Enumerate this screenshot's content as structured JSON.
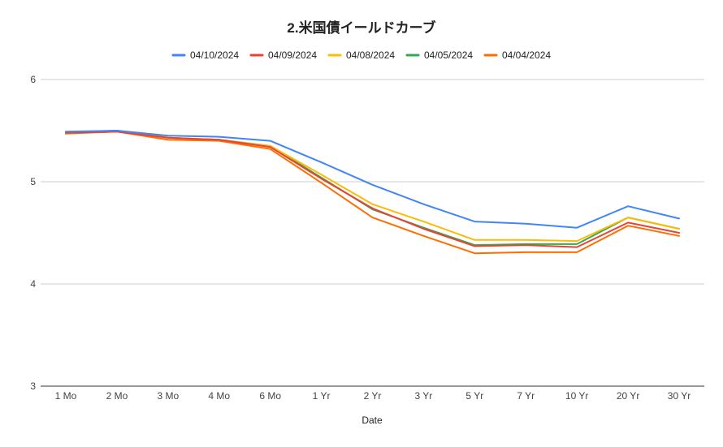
{
  "chart_data": {
    "type": "line",
    "title": "2.米国債イールドカーブ",
    "xlabel": "Date",
    "ylabel": "",
    "categories": [
      "1 Mo",
      "2 Mo",
      "3 Mo",
      "4 Mo",
      "6 Mo",
      "1 Yr",
      "2 Yr",
      "3 Yr",
      "5 Yr",
      "7 Yr",
      "10 Yr",
      "20 Yr",
      "30 Yr"
    ],
    "ylim": [
      3,
      6
    ],
    "yticks": [
      "3",
      "4",
      "5",
      "6"
    ],
    "grid": true,
    "legend_position": "top",
    "series": [
      {
        "name": "04/10/2024",
        "color": "#4285f4",
        "values": [
          5.49,
          5.5,
          5.45,
          5.44,
          5.4,
          5.19,
          4.97,
          4.78,
          4.61,
          4.59,
          4.55,
          4.76,
          4.64
        ]
      },
      {
        "name": "04/09/2024",
        "color": "#ea4335",
        "values": [
          5.48,
          5.49,
          5.43,
          5.41,
          5.34,
          5.03,
          4.74,
          4.54,
          4.37,
          4.38,
          4.36,
          4.6,
          4.5
        ]
      },
      {
        "name": "04/08/2024",
        "color": "#fbbc04",
        "values": [
          5.48,
          5.5,
          5.43,
          5.41,
          5.35,
          5.07,
          4.78,
          4.61,
          4.43,
          4.43,
          4.42,
          4.65,
          4.54
        ]
      },
      {
        "name": "04/05/2024",
        "color": "#34a853",
        "values": [
          5.48,
          5.5,
          5.43,
          5.41,
          5.35,
          5.04,
          4.73,
          4.55,
          4.38,
          4.39,
          4.39,
          4.65,
          4.54
        ]
      },
      {
        "name": "04/04/2024",
        "color": "#ff6d01",
        "values": [
          5.47,
          5.49,
          5.41,
          5.4,
          5.32,
          4.99,
          4.65,
          4.47,
          4.3,
          4.31,
          4.31,
          4.57,
          4.47
        ]
      }
    ]
  }
}
